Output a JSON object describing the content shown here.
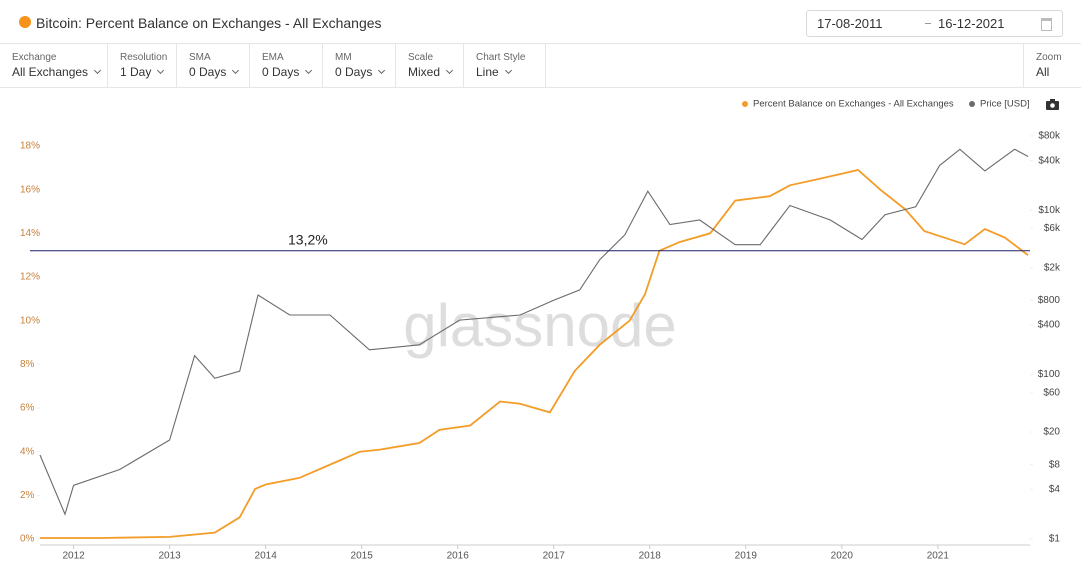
{
  "header": {
    "title": "Bitcoin: Percent Balance on Exchanges - All Exchanges",
    "start_date": "17-08-2011",
    "end_date": "16-12-2021"
  },
  "controls": [
    {
      "label": "Exchange",
      "value": "All Exchanges"
    },
    {
      "label": "Resolution",
      "value": "1 Day"
    },
    {
      "label": "SMA",
      "value": "0 Days"
    },
    {
      "label": "EMA",
      "value": "0 Days"
    },
    {
      "label": "MM",
      "value": "0 Days"
    },
    {
      "label": "Scale",
      "value": "Mixed"
    },
    {
      "label": "Chart Style",
      "value": "Line"
    }
  ],
  "zoom": {
    "label": "Zoom",
    "value": "All"
  },
  "watermark": "glassnode",
  "chart_data": {
    "type": "line",
    "xlim": [
      2011.65,
      2021.96
    ],
    "xticks": [
      2012,
      2013,
      2014,
      2015,
      2016,
      2017,
      2018,
      2019,
      2020,
      2021
    ],
    "ylim": [
      -0.27,
      18.96
    ],
    "yticks": [
      {
        "value": 0,
        "label": "0%"
      },
      {
        "value": 2,
        "label": "2%"
      },
      {
        "value": 4,
        "label": "4%"
      },
      {
        "value": 6,
        "label": "6%"
      },
      {
        "value": 8,
        "label": "8%"
      },
      {
        "value": 10,
        "label": "10%"
      },
      {
        "value": 12,
        "label": "12%"
      },
      {
        "value": 14,
        "label": "14%"
      },
      {
        "value": 16,
        "label": "16%"
      },
      {
        "value": 18,
        "label": "18%"
      }
    ],
    "y2lim": [
      0.845,
      108600
    ],
    "y2log": true,
    "y2ticks": [
      {
        "value": 1,
        "label": "$1"
      },
      {
        "value": 4,
        "label": "$4"
      },
      {
        "value": 8,
        "label": "$8"
      },
      {
        "value": 20,
        "label": "$20"
      },
      {
        "value": 60,
        "label": "$60"
      },
      {
        "value": 100,
        "label": "$100"
      },
      {
        "value": 400,
        "label": "$400"
      },
      {
        "value": 800,
        "label": "$800"
      },
      {
        "value": 2000,
        "label": "$2k"
      },
      {
        "value": 6000,
        "label": "$6k"
      },
      {
        "value": 10000,
        "label": "$10k"
      },
      {
        "value": 40000,
        "label": "$40k"
      },
      {
        "value": 80000,
        "label": "$80k"
      }
    ],
    "annotation": {
      "value": 13.2,
      "label": "13,2%",
      "color": "#1f1f6b"
    },
    "series": [
      {
        "name": "Percent Balance on Exchanges - All Exchanges",
        "color": "#f39c27",
        "x": [
          2011.65,
          2012.27,
          2013,
          2013.47,
          2013.73,
          2013.89,
          2014,
          2014.35,
          2014.77,
          2014.98,
          2015.19,
          2015.6,
          2015.81,
          2016.13,
          2016.44,
          2016.65,
          2016.96,
          2017.22,
          2017.48,
          2017.79,
          2017.95,
          2018.1,
          2018.31,
          2018.63,
          2018.89,
          2019.25,
          2019.46,
          2019.77,
          2020.17,
          2020.4,
          2020.66,
          2020.86,
          2021.28,
          2021.49,
          2021.7,
          2021.94
        ],
        "values": [
          0.05,
          0.05,
          0.1,
          0.3,
          1.0,
          2.3,
          2.5,
          2.8,
          3.6,
          4.0,
          4.1,
          4.4,
          5.0,
          5.2,
          6.3,
          6.2,
          5.8,
          7.7,
          8.9,
          10.0,
          11.2,
          13.2,
          13.6,
          14.0,
          15.5,
          15.7,
          16.2,
          16.5,
          16.9,
          16.0,
          15.1,
          14.1,
          13.5,
          14.2,
          13.8,
          13.0
        ]
      },
      {
        "name": "Price [USD]",
        "color": "#6b6b6b",
        "axis": "y2",
        "x": [
          2011.65,
          2011.91,
          2012,
          2012.48,
          2013,
          2013.26,
          2013.47,
          2013.73,
          2013.92,
          2014.25,
          2014.67,
          2015.08,
          2015.6,
          2016.02,
          2016.65,
          2017,
          2017.27,
          2017.48,
          2017.74,
          2017.98,
          2018.21,
          2018.52,
          2018.89,
          2019.15,
          2019.46,
          2019.88,
          2020.21,
          2020.45,
          2020.77,
          2021.02,
          2021.23,
          2021.49,
          2021.8,
          2021.94
        ],
        "values": [
          10.5,
          2,
          4.5,
          7,
          16,
          170,
          90,
          110,
          930,
          530,
          530,
          200,
          230,
          460,
          530,
          800,
          1070,
          2500,
          5000,
          17000,
          6700,
          7600,
          3800,
          3800,
          11400,
          7600,
          4400,
          8800,
          11000,
          35000,
          55000,
          30000,
          55000,
          45000
        ]
      }
    ]
  }
}
